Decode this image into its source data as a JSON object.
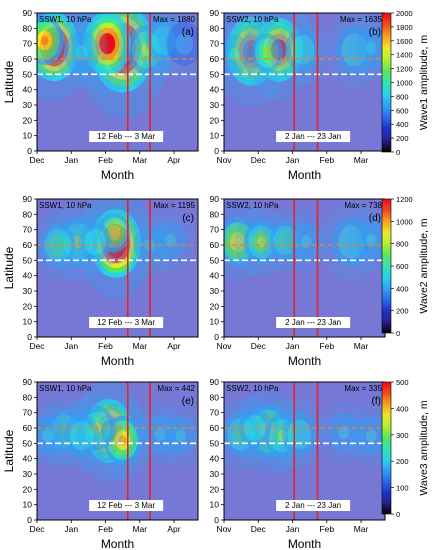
{
  "chart_data": {
    "type": "heatmap",
    "panels": [
      {
        "id": "a",
        "title": "SSW1, 10 hPa",
        "max_label": "Max = 1880",
        "tag": "(a)",
        "window_label": "12 Feb --- 3 Mar",
        "ylabel": "Latitude",
        "xlabel": "Month",
        "xticks": [
          "Dec",
          "Jan",
          "Feb",
          "Mar",
          "Apr"
        ],
        "yticks": [
          "0",
          "10",
          "20",
          "30",
          "40",
          "50",
          "60",
          "70",
          "80",
          "90"
        ],
        "ylim": [
          0,
          90
        ],
        "vlines_ticks": [
          2.65,
          3.3
        ],
        "hlines_lat": [
          50,
          60
        ],
        "blobs": [
          [
            0.5,
            68,
            14,
            1.0
          ],
          [
            0.22,
            72,
            10,
            0.7
          ],
          [
            2.5,
            67,
            18,
            1.0
          ],
          [
            2.05,
            70,
            13,
            0.85
          ],
          [
            3.2,
            66,
            10,
            0.55
          ],
          [
            3.7,
            72,
            9,
            0.38
          ],
          [
            1.3,
            64,
            9,
            0.3
          ],
          [
            4.3,
            70,
            9,
            0.22
          ]
        ]
      },
      {
        "id": "b",
        "title": "SSW2, 10 hPa",
        "max_label": "Max = 1635",
        "tag": "(b)",
        "window_label": "2 Jan --- 23 Jan",
        "ylabel": "",
        "xlabel": "Month",
        "xticks": [
          "Nov",
          "Dec",
          "Jan",
          "Feb",
          "Mar"
        ],
        "yticks": [
          "0",
          "10",
          "20",
          "30",
          "40",
          "50",
          "60",
          "70",
          "80",
          "90"
        ],
        "ylim": [
          0,
          90
        ],
        "vlines_ticks": [
          2.05,
          2.73
        ],
        "hlines_lat": [
          50,
          60
        ],
        "blobs": [
          [
            0.8,
            65,
            14,
            0.8
          ],
          [
            1.6,
            66,
            13,
            0.85
          ],
          [
            1.25,
            64,
            8,
            0.45
          ],
          [
            2.3,
            66,
            9,
            0.4
          ],
          [
            3.8,
            66,
            10,
            0.38
          ],
          [
            4.3,
            67,
            8,
            0.28
          ],
          [
            0.3,
            63,
            8,
            0.25
          ]
        ]
      },
      {
        "id": "c",
        "title": "SSW1, 10 hPa",
        "max_label": "Max = 1195",
        "tag": "(c)",
        "window_label": "12 Feb --- 3 Mar",
        "ylabel": "Latitude",
        "xlabel": "Month",
        "xticks": [
          "Dec",
          "Jan",
          "Feb",
          "Mar",
          "Apr"
        ],
        "yticks": [
          "0",
          "10",
          "20",
          "30",
          "40",
          "50",
          "60",
          "70",
          "80",
          "90"
        ],
        "ylim": [
          0,
          90
        ],
        "vlines_ticks": [
          2.65,
          3.3
        ],
        "hlines_lat": [
          50,
          60
        ],
        "blobs": [
          [
            2.3,
            61,
            14,
            1.0
          ],
          [
            2.25,
            68,
            8,
            0.6
          ],
          [
            1.2,
            62,
            10,
            0.55
          ],
          [
            0.6,
            60,
            9,
            0.42
          ],
          [
            1.7,
            62,
            8,
            0.38
          ],
          [
            3.3,
            60,
            8,
            0.3
          ],
          [
            3.9,
            63,
            8,
            0.25
          ]
        ]
      },
      {
        "id": "d",
        "title": "SSW2, 10 hPa",
        "max_label": "Max = 738",
        "tag": "(d)",
        "window_label": "2 Jan --- 23 Jan",
        "ylabel": "",
        "xlabel": "Month",
        "xticks": [
          "Nov",
          "Dec",
          "Jan",
          "Feb",
          "Mar"
        ],
        "yticks": [
          "0",
          "10",
          "20",
          "30",
          "40",
          "50",
          "60",
          "70",
          "80",
          "90"
        ],
        "ylim": [
          0,
          90
        ],
        "vlines_ticks": [
          2.05,
          2.73
        ],
        "hlines_lat": [
          50,
          60
        ],
        "blobs": [
          [
            0.4,
            62,
            10,
            0.62
          ],
          [
            1.1,
            62,
            9,
            0.58
          ],
          [
            1.8,
            63,
            8,
            0.42
          ],
          [
            2.4,
            62,
            8,
            0.3
          ],
          [
            3.7,
            62,
            10,
            0.4
          ],
          [
            4.3,
            63,
            8,
            0.3
          ]
        ]
      },
      {
        "id": "e",
        "title": "SSW1, 10 hPa",
        "max_label": "Max = 442",
        "tag": "(e)",
        "window_label": "12 Feb --- 3 Mar",
        "ylabel": "Latitude",
        "xlabel": "Month",
        "xticks": [
          "Dec",
          "Jan",
          "Feb",
          "Mar",
          "Apr"
        ],
        "yticks": [
          "0",
          "10",
          "20",
          "30",
          "40",
          "50",
          "60",
          "70",
          "80",
          "90"
        ],
        "ylim": [
          0,
          90
        ],
        "vlines_ticks": [
          2.65,
          3.3
        ],
        "hlines_lat": [
          50,
          60
        ],
        "blobs": [
          [
            2.1,
            58,
            13,
            0.9
          ],
          [
            2.5,
            52,
            10,
            0.7
          ],
          [
            1.75,
            60,
            9,
            0.55
          ],
          [
            0.8,
            58,
            9,
            0.45
          ],
          [
            1.3,
            55,
            9,
            0.4
          ],
          [
            0.3,
            55,
            8,
            0.35
          ],
          [
            3.6,
            56,
            8,
            0.35
          ],
          [
            4.2,
            55,
            8,
            0.25
          ]
        ]
      },
      {
        "id": "f",
        "title": "SSW2, 10 hPa",
        "max_label": "Max = 335",
        "tag": "(f)",
        "window_label": "2 Jan --- 23 Jan",
        "ylabel": "",
        "xlabel": "Month",
        "xticks": [
          "Nov",
          "Dec",
          "Jan",
          "Feb",
          "Mar"
        ],
        "yticks": [
          "0",
          "10",
          "20",
          "30",
          "40",
          "50",
          "60",
          "70",
          "80",
          "90"
        ],
        "ylim": [
          0,
          90
        ],
        "vlines_ticks": [
          2.05,
          2.73
        ],
        "hlines_lat": [
          50,
          60
        ],
        "blobs": [
          [
            1.3,
            58,
            11,
            0.62
          ],
          [
            1.7,
            55,
            9,
            0.55
          ],
          [
            0.5,
            56,
            9,
            0.45
          ],
          [
            0.9,
            60,
            8,
            0.4
          ],
          [
            2.2,
            56,
            9,
            0.4
          ],
          [
            3.5,
            57,
            8,
            0.3
          ],
          [
            4.3,
            55,
            8,
            0.3
          ]
        ]
      }
    ],
    "colorbars": [
      {
        "label": "Wave1 amplitude, m",
        "ticks": [
          "0",
          "200",
          "400",
          "600",
          "800",
          "1000",
          "1200",
          "1400",
          "1600",
          "1800",
          "2000"
        ],
        "max": 2000
      },
      {
        "label": "Wave2 amplitude, m",
        "ticks": [
          "0",
          "200",
          "400",
          "600",
          "800",
          "1000",
          "1200"
        ],
        "max": 1200
      },
      {
        "label": "Wave3 amplitude, m",
        "ticks": [
          "0",
          "100",
          "200",
          "300",
          "400",
          "500"
        ],
        "max": 500
      }
    ],
    "colormap": [
      "#000000",
      "#2a1e8c",
      "#1a35c8",
      "#2f69f0",
      "#2fa2f5",
      "#28d2e8",
      "#30e6a8",
      "#5ae65a",
      "#b4f030",
      "#f0e626",
      "#f5a020",
      "#f04a1e",
      "#e80a1e"
    ],
    "background_color": "#7777d6",
    "line_colors": {
      "vertical": "#e32222",
      "orange_dashed": "#f08030",
      "white_dashed": "#ffffff"
    }
  }
}
